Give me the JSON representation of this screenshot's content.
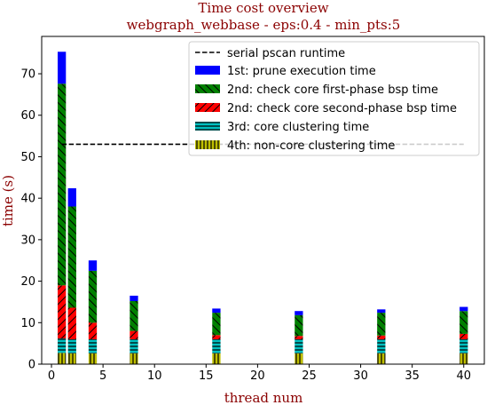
{
  "chart_data": {
    "type": "bar",
    "stacked": true,
    "title_line1": "Time cost overview",
    "title_line2": "webgraph_webbase - eps:0.4 - min_pts:5",
    "xlabel": "thread num",
    "ylabel": "time (s)",
    "xlim": [
      -0.95,
      42.0
    ],
    "ylim": [
      0,
      79
    ],
    "x_ticks": [
      0,
      5,
      10,
      15,
      20,
      25,
      30,
      35,
      40
    ],
    "y_ticks": [
      0,
      10,
      20,
      30,
      40,
      50,
      60,
      70
    ],
    "x_tick_labels": [
      "0",
      "5",
      "10",
      "15",
      "20",
      "25",
      "30",
      "35",
      "40"
    ],
    "y_tick_labels": [
      "0",
      "10",
      "20",
      "30",
      "40",
      "50",
      "60",
      "70"
    ],
    "bar_width": 0.8,
    "legend_location": "upper right",
    "serial_runtime": {
      "name": "serial pscan runtime",
      "value": 53,
      "x_range": [
        1,
        40
      ],
      "color": "#000000"
    },
    "categories": [
      1,
      2,
      4,
      8,
      16,
      24,
      32,
      40
    ],
    "series": [
      {
        "name": "4th: non-core clustering time",
        "color": "#bfbf00",
        "hatch": "vertical",
        "values": [
          2.7,
          2.6,
          2.6,
          2.6,
          2.6,
          2.6,
          2.6,
          2.6
        ]
      },
      {
        "name": "3rd: core clustering time",
        "color": "#00bfbf",
        "hatch": "horizontal",
        "values": [
          3.5,
          3.4,
          3.4,
          3.4,
          3.4,
          3.4,
          3.4,
          3.4
        ]
      },
      {
        "name": "2nd: check core second-phase bsp time",
        "color": "#ff0000",
        "hatch": "diagonal-right",
        "values": [
          12.8,
          7.6,
          4.0,
          2.0,
          1.0,
          0.8,
          0.9,
          1.3
        ]
      },
      {
        "name": "2nd: check core first-phase bsp time",
        "color": "#008000",
        "hatch": "diagonal-left",
        "values": [
          48.6,
          24.4,
          12.5,
          7.2,
          5.4,
          5.0,
          5.5,
          5.5
        ]
      },
      {
        "name": "1st: prune execution time",
        "color": "#0000ff",
        "hatch": "none",
        "values": [
          7.7,
          4.4,
          2.5,
          1.3,
          1.0,
          1.0,
          0.8,
          1.0
        ]
      }
    ],
    "legend_order": [
      "serial pscan runtime",
      "1st: prune execution time",
      "2nd: check core first-phase bsp time",
      "2nd: check core second-phase bsp time",
      "3rd: core clustering time",
      "4th: non-core clustering time"
    ]
  }
}
